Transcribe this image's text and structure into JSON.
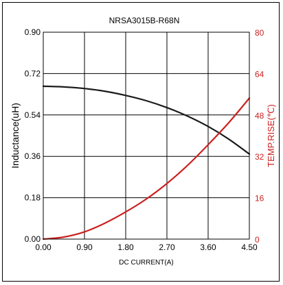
{
  "chart_data": {
    "type": "line",
    "title": "NRSA3015B-R68N",
    "xlabel": "DC CURRENT(A)",
    "ylabel": "Inductance(uH)",
    "y2label": "TEMP.RISE(℃)",
    "xlim": [
      0,
      4.5
    ],
    "ylim": [
      0,
      0.9
    ],
    "y2lim": [
      0,
      80
    ],
    "x_ticks": [
      "0.00",
      "0.90",
      "1.80",
      "2.70",
      "3.60",
      "4.50"
    ],
    "y_ticks": [
      "0.00",
      "0.18",
      "0.36",
      "0.54",
      "0.72",
      "0.90"
    ],
    "y2_ticks": [
      "0",
      "16",
      "32",
      "48",
      "64",
      "80"
    ],
    "grid": true,
    "series": [
      {
        "axis": "left",
        "color": "#1a1a1a",
        "x": [
          0,
          0.45,
          0.9,
          1.35,
          1.8,
          2.25,
          2.7,
          3.15,
          3.6,
          4.05,
          4.5
        ],
        "y": [
          0.665,
          0.662,
          0.655,
          0.643,
          0.625,
          0.602,
          0.572,
          0.535,
          0.49,
          0.435,
          0.37
        ]
      },
      {
        "axis": "right",
        "color": "#cc1f1f",
        "x": [
          0,
          0.45,
          0.9,
          1.35,
          1.8,
          2.25,
          2.7,
          3.15,
          3.6,
          4.05,
          4.5
        ],
        "y": [
          0,
          0.8,
          2.8,
          6.2,
          10.5,
          15.5,
          21.5,
          28.5,
          36.5,
          45.0,
          54.5
        ]
      }
    ]
  }
}
